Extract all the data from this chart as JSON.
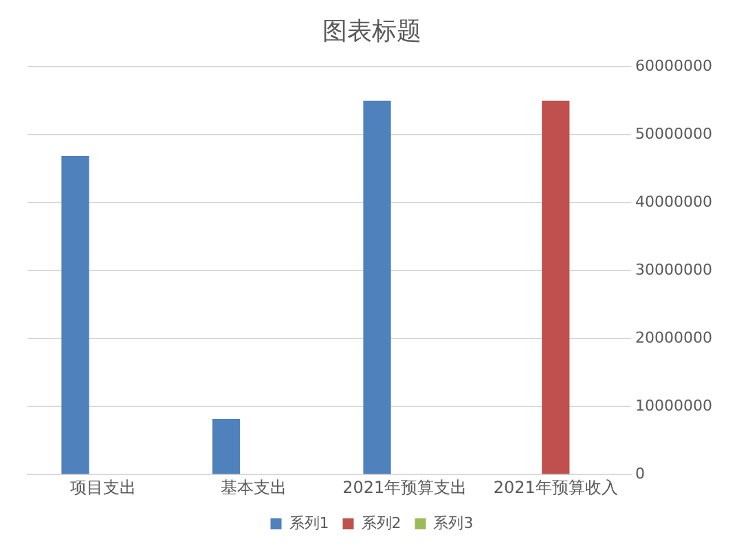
{
  "chart_data": {
    "type": "bar",
    "title": "图表标题",
    "categories": [
      "项目支出",
      "基本支出",
      "2021年预算支出",
      "2021年预算收入"
    ],
    "series": [
      {
        "name": "系列1",
        "color": "#4f81bd",
        "values": [
          46900000,
          8200000,
          55000000,
          null
        ]
      },
      {
        "name": "系列2",
        "color": "#c0504d",
        "values": [
          null,
          null,
          null,
          55000000
        ]
      },
      {
        "name": "系列3",
        "color": "#9bbb59",
        "values": [
          null,
          null,
          null,
          null
        ]
      }
    ],
    "ylim": [
      0,
      60000000
    ],
    "yticks": [
      0,
      10000000,
      20000000,
      30000000,
      40000000,
      50000000,
      60000000
    ],
    "grid": "y",
    "legend": "bottom"
  }
}
